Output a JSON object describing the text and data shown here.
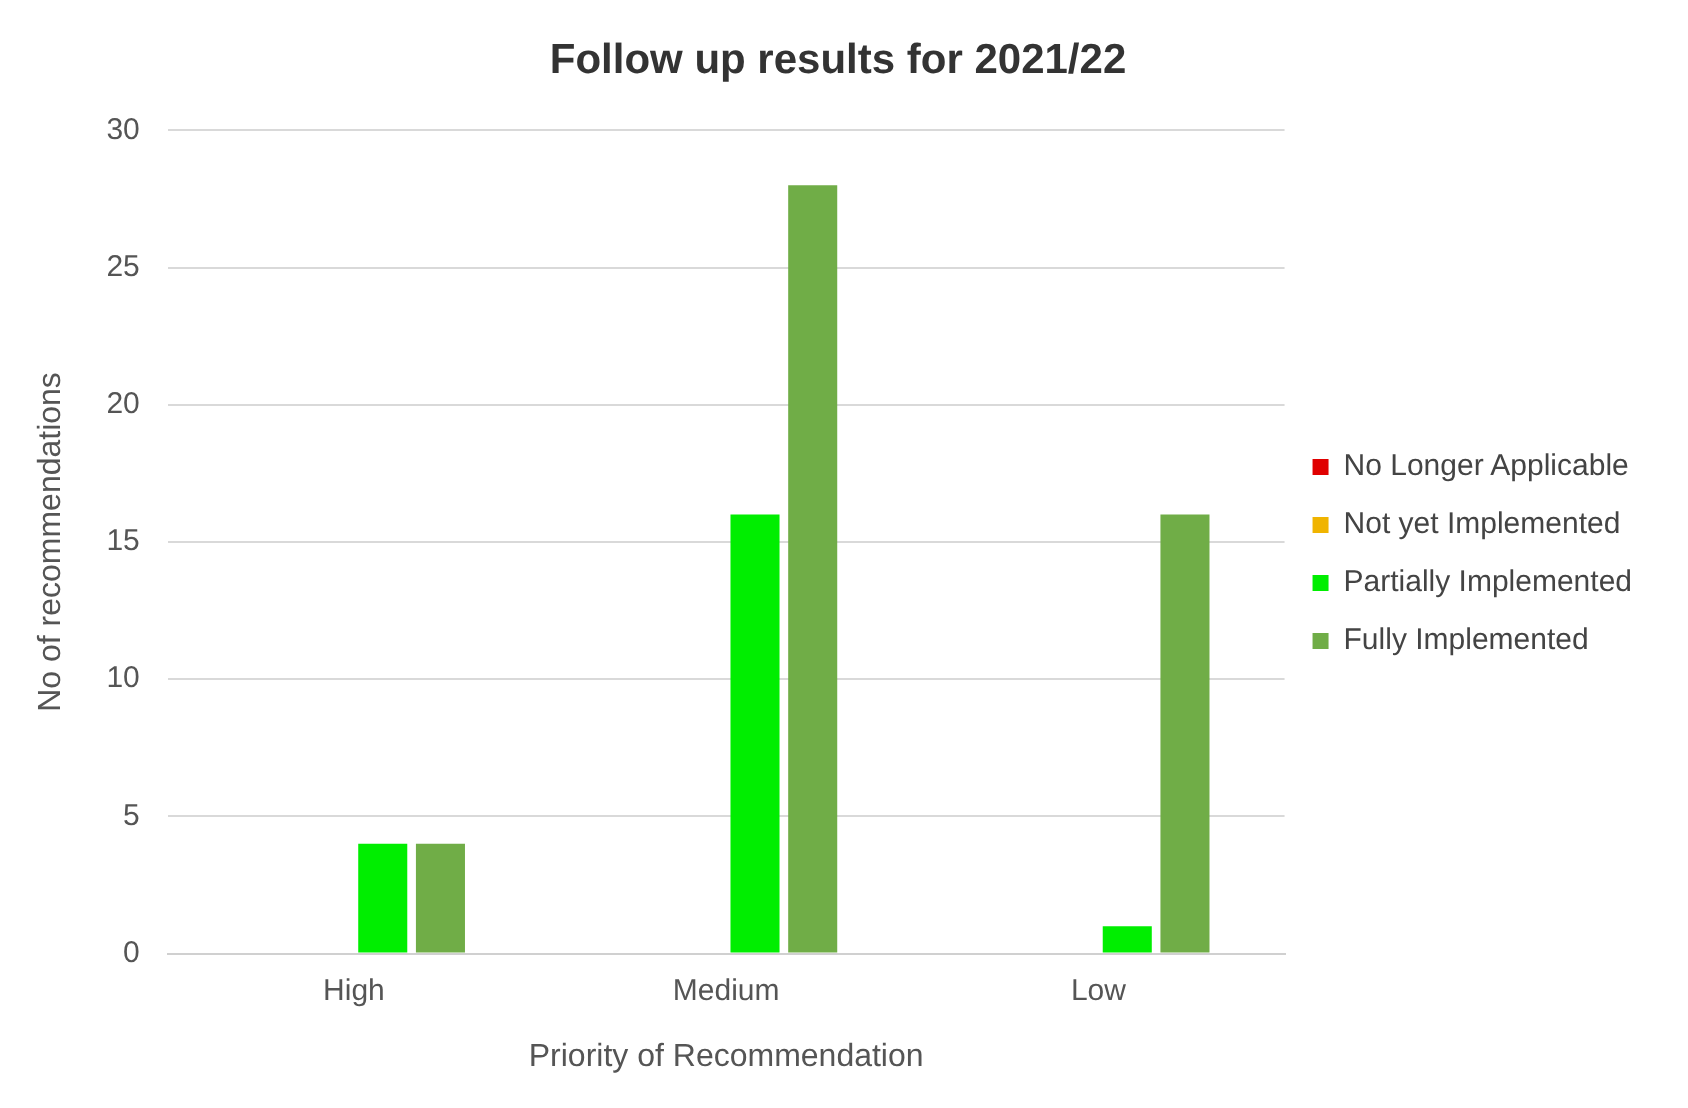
{
  "chart_data": {
    "type": "bar",
    "title": "Follow up results for 2021/22",
    "xlabel": "Priority of Recommendation",
    "ylabel": "No of recommendations",
    "categories": [
      "High",
      "Medium",
      "Low"
    ],
    "series": [
      {
        "name": "No Longer Applicable",
        "color": "#e00000",
        "values": [
          0,
          0,
          0
        ]
      },
      {
        "name": "Not yet Implemented",
        "color": "#f0b400",
        "values": [
          0,
          0,
          0
        ]
      },
      {
        "name": "Partially Implemented",
        "color": "#00ee00",
        "values": [
          4,
          16,
          1
        ]
      },
      {
        "name": "Fully Implemented",
        "color": "#70ad47",
        "values": [
          4,
          28,
          16
        ]
      }
    ],
    "ylim": [
      0,
      30
    ],
    "yticks": [
      0,
      5,
      10,
      15,
      20,
      25,
      30
    ],
    "grid": "y",
    "legend": "right"
  }
}
